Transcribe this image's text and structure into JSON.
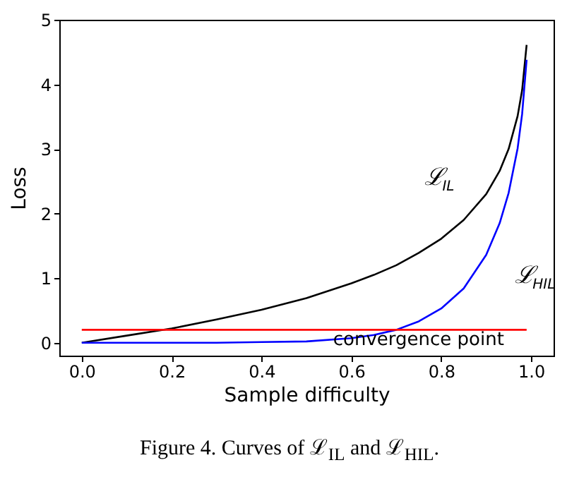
{
  "chart_data": {
    "type": "line",
    "xlabel": "Sample difficulty",
    "ylabel": "Loss",
    "xlim": [
      -0.05,
      1.05
    ],
    "ylim": [
      -0.2,
      5
    ],
    "xticks": [
      {
        "value": 0,
        "label": "0.0"
      },
      {
        "value": 0.2,
        "label": "0.2"
      },
      {
        "value": 0.4,
        "label": "0.4"
      },
      {
        "value": 0.6,
        "label": "0.6"
      },
      {
        "value": 0.8,
        "label": "0.8"
      },
      {
        "value": 1,
        "label": "1.0"
      }
    ],
    "yticks": [
      0,
      1,
      2,
      3,
      4,
      5
    ],
    "grid": false,
    "legend": false,
    "marker": "none",
    "line_style": "solid",
    "x": [
      0,
      0.1,
      0.2,
      0.3,
      0.4,
      0.5,
      0.6,
      0.65,
      0.7,
      0.75,
      0.8,
      0.85,
      0.9,
      0.93,
      0.95,
      0.97,
      0.98,
      0.99
    ],
    "series": [
      {
        "name": "ℒ$_{IL}$",
        "color": "#000000",
        "values": [
          0,
          0.11,
          0.22,
          0.36,
          0.51,
          0.69,
          0.92,
          1.05,
          1.2,
          1.39,
          1.61,
          1.9,
          2.3,
          2.66,
          3.0,
          3.51,
          3.91,
          4.61
        ]
      },
      {
        "name": "ℒ$_{HIL}$",
        "color": "#0000ff",
        "values": [
          0,
          0,
          0,
          0,
          0.01,
          0.02,
          0.07,
          0.12,
          0.2,
          0.33,
          0.53,
          0.84,
          1.36,
          1.85,
          2.32,
          3.01,
          3.54,
          4.38
        ]
      },
      {
        "name": "convergence point",
        "color": "#ff0000",
        "x": [
          0,
          0.99
        ],
        "values": [
          0.2,
          0.2
        ]
      }
    ],
    "annotations": [
      "Figure 4. Curves of ℒ$_{IL}$ and ℒ$_{HIL}$."
    ]
  }
}
